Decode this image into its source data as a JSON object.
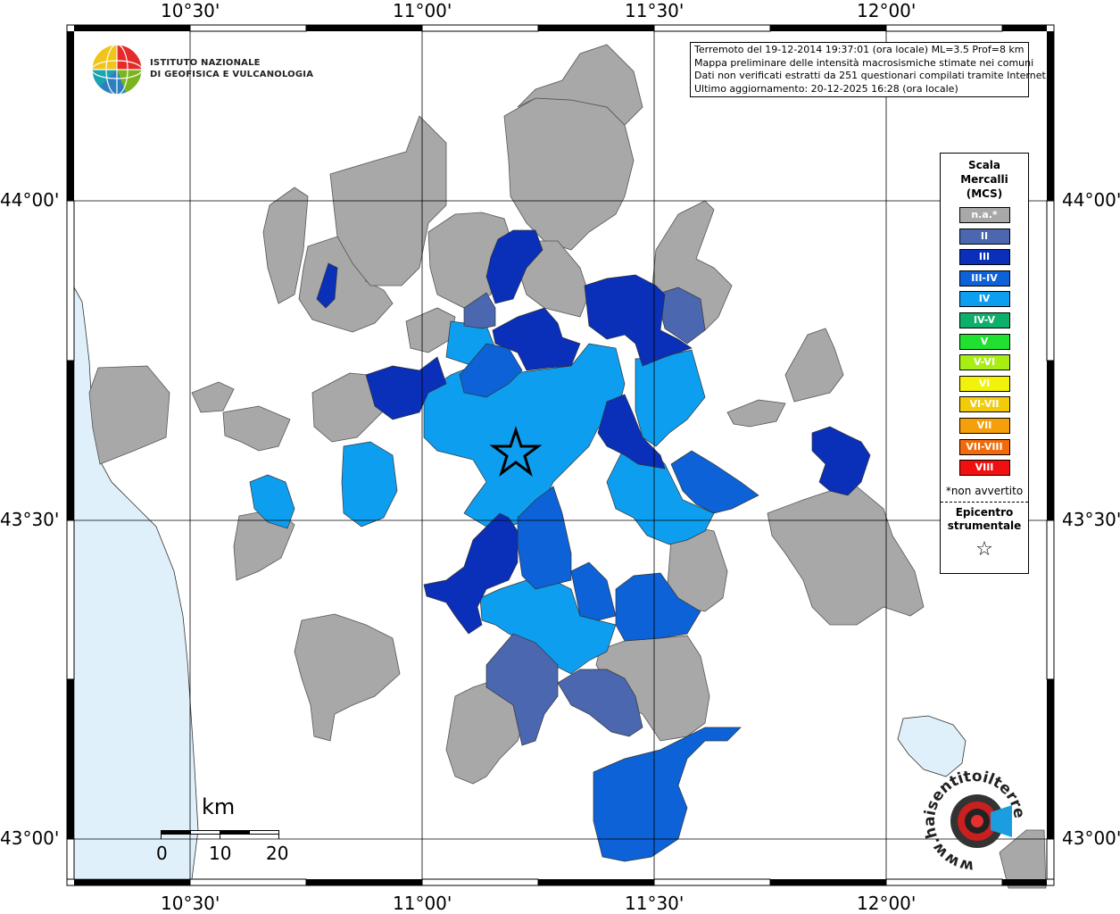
{
  "axes": {
    "lon_labels": [
      "10°30'",
      "11°00'",
      "11°30'",
      "12°00'"
    ],
    "lat_labels": [
      "44°00'",
      "43°30'",
      "43°00'"
    ]
  },
  "logo": {
    "line1": "ISTITUTO NAZIONALE",
    "line2": "DI GEOFISICA E VULCANOLOGIA",
    "icon": "ingv-globe-icon"
  },
  "info": {
    "line1": "Terremoto del 19-12-2014 19:37:01 (ora locale) ML=3.5 Prof=8 km",
    "line2": "Mappa preliminare delle intensità macrosismiche stimate nei comuni",
    "line3": "Dati non verificati estratti da 251 questionari compilati tramite Internet.",
    "line4": "Ultimo aggiornamento: 20-12-2025 16:28 (ora locale)"
  },
  "legend": {
    "title1": "Scala",
    "title2": "Mercalli",
    "title3": "(MCS)",
    "items": [
      {
        "label": "n.a.*",
        "color": "#a8a8a8"
      },
      {
        "label": "II",
        "color": "#4a67b0"
      },
      {
        "label": "III",
        "color": "#0a2fb8"
      },
      {
        "label": "III-IV",
        "color": "#0c62d6"
      },
      {
        "label": "IV",
        "color": "#0e9ef0"
      },
      {
        "label": "IV-V",
        "color": "#0db06a"
      },
      {
        "label": "V",
        "color": "#20e030"
      },
      {
        "label": "V-VI",
        "color": "#a8ee12"
      },
      {
        "label": "VI",
        "color": "#f2f20a"
      },
      {
        "label": "VI-VII",
        "color": "#f2cc0a"
      },
      {
        "label": "VII",
        "color": "#f5a00a"
      },
      {
        "label": "VII-VIII",
        "color": "#f26a0a"
      },
      {
        "label": "VIII",
        "color": "#f01010"
      }
    ],
    "note": "*non avvertito",
    "epi1": "Epicentro",
    "epi2": "strumentale",
    "star": "☆"
  },
  "scale": {
    "unit": "km",
    "labels": [
      "0",
      "10",
      "20"
    ]
  },
  "watermark": {
    "text": "www.haisentitoilterremoto.it",
    "icon": "hai-sentito-logo-icon"
  },
  "colors": {
    "sea": "#dff0fb",
    "na": "#a8a8a8",
    "ii": "#4a67b0",
    "iii": "#0a2fb8",
    "iii_iv": "#0c62d6",
    "iv": "#0e9ef0"
  }
}
